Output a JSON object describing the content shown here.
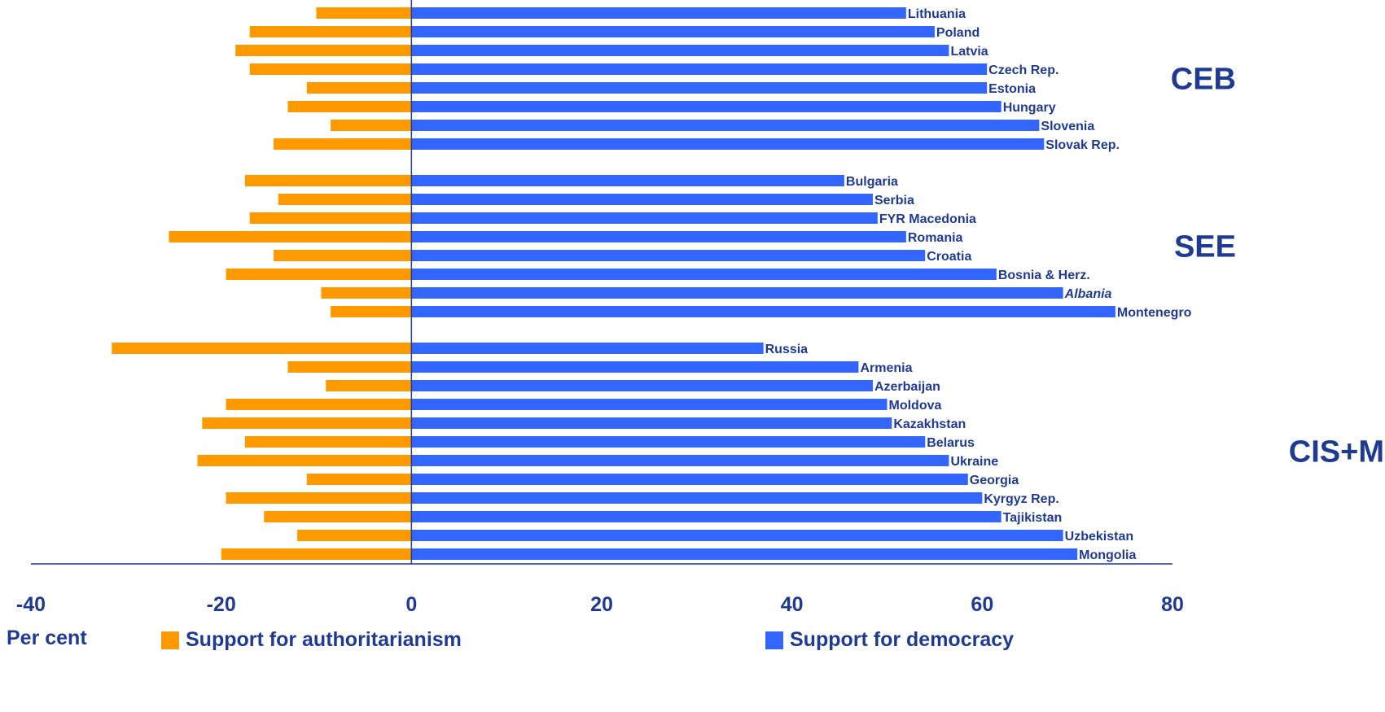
{
  "chart_data": {
    "type": "bar",
    "orientation": "horizontal",
    "xlim": [
      -40,
      80
    ],
    "x_ticks": [
      -40,
      -20,
      0,
      20,
      40,
      60,
      80
    ],
    "unit_label": "Per cent",
    "colors": {
      "authoritarianism": "#ff9900",
      "democracy": "#3366ff",
      "text": "#1f3a93"
    },
    "series": [
      {
        "name": "Support for authoritarianism",
        "key": "authoritarianism"
      },
      {
        "name": "Support for democracy",
        "key": "democracy"
      }
    ],
    "groups": [
      {
        "label": "CEB",
        "rows": [
          {
            "country": "Lithuania",
            "authoritarianism": -10,
            "democracy": 52
          },
          {
            "country": "Poland",
            "authoritarianism": -17,
            "democracy": 55
          },
          {
            "country": "Latvia",
            "authoritarianism": -18.5,
            "democracy": 56.5
          },
          {
            "country": "Czech Rep.",
            "authoritarianism": -17,
            "democracy": 60.5
          },
          {
            "country": "Estonia",
            "authoritarianism": -11,
            "democracy": 60.5
          },
          {
            "country": "Hungary",
            "authoritarianism": -13,
            "democracy": 62
          },
          {
            "country": "Slovenia",
            "authoritarianism": -8.5,
            "democracy": 66
          },
          {
            "country": "Slovak Rep.",
            "authoritarianism": -14.5,
            "democracy": 66.5
          }
        ]
      },
      {
        "label": "SEE",
        "rows": [
          {
            "country": "Bulgaria",
            "authoritarianism": -17.5,
            "democracy": 45.5
          },
          {
            "country": "Serbia",
            "authoritarianism": -14,
            "democracy": 48.5
          },
          {
            "country": "FYR Macedonia",
            "authoritarianism": -17,
            "democracy": 49
          },
          {
            "country": "Romania",
            "authoritarianism": -25.5,
            "democracy": 52
          },
          {
            "country": "Croatia",
            "authoritarianism": -14.5,
            "democracy": 54
          },
          {
            "country": "Bosnia & Herz.",
            "authoritarianism": -19.5,
            "democracy": 61.5
          },
          {
            "country": "Albania",
            "authoritarianism": -9.5,
            "democracy": 68.5,
            "italic": true
          },
          {
            "country": "Montenegro",
            "authoritarianism": -8.5,
            "democracy": 74
          }
        ]
      },
      {
        "label": "CIS+M",
        "rows": [
          {
            "country": "Russia",
            "authoritarianism": -31.5,
            "democracy": 37
          },
          {
            "country": "Armenia",
            "authoritarianism": -13,
            "democracy": 47
          },
          {
            "country": "Azerbaijan",
            "authoritarianism": -9,
            "democracy": 48.5
          },
          {
            "country": "Moldova",
            "authoritarianism": -19.5,
            "democracy": 50
          },
          {
            "country": "Kazakhstan",
            "authoritarianism": -22,
            "democracy": 50.5
          },
          {
            "country": "Belarus",
            "authoritarianism": -17.5,
            "democracy": 54
          },
          {
            "country": "Ukraine",
            "authoritarianism": -22.5,
            "democracy": 56.5
          },
          {
            "country": "Georgia",
            "authoritarianism": -11,
            "democracy": 58.5
          },
          {
            "country": "Kyrgyz Rep.",
            "authoritarianism": -19.5,
            "democracy": 60
          },
          {
            "country": "Tajikistan",
            "authoritarianism": -15.5,
            "democracy": 62
          },
          {
            "country": "Uzbekistan",
            "authoritarianism": -12,
            "democracy": 68.5
          },
          {
            "country": "Mongolia",
            "authoritarianism": -20,
            "democracy": 70
          }
        ]
      }
    ]
  }
}
